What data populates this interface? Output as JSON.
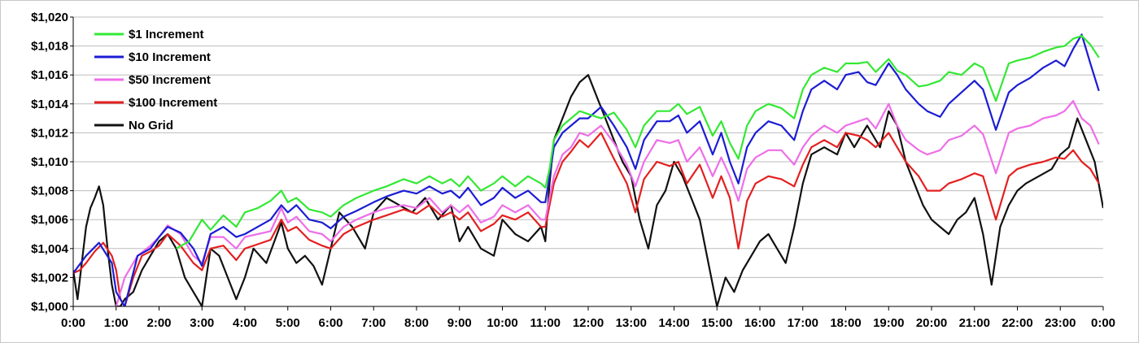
{
  "chart_data": {
    "type": "line",
    "title": "",
    "xlabel": "",
    "ylabel": "",
    "ylim": [
      1000,
      1020
    ],
    "y_ticks": [
      1000,
      1002,
      1004,
      1006,
      1008,
      1010,
      1012,
      1014,
      1016,
      1018,
      1020
    ],
    "y_tick_labels": [
      "$1,000",
      "$1,002",
      "$1,004",
      "$1,006",
      "$1,008",
      "$1,010",
      "$1,012",
      "$1,014",
      "$1,016",
      "$1,018",
      "$1,020"
    ],
    "xlim": [
      0,
      24
    ],
    "x_ticks": [
      0,
      1,
      2,
      3,
      4,
      5,
      6,
      7,
      8,
      9,
      10,
      11,
      12,
      13,
      14,
      15,
      16,
      17,
      18,
      19,
      20,
      21,
      22,
      23,
      24
    ],
    "x_tick_labels": [
      "0:00",
      "1:00",
      "2:00",
      "3:00",
      "4:00",
      "5:00",
      "6:00",
      "7:00",
      "8:00",
      "9:00",
      "10:00",
      "11:00",
      "12:00",
      "13:00",
      "14:00",
      "15:00",
      "16:00",
      "17:00",
      "18:00",
      "19:00",
      "20:00",
      "21:00",
      "22:00",
      "23:00",
      "0:00"
    ],
    "grid": "horizontal",
    "legend_position": "top-left",
    "series": [
      {
        "name": "$1 Increment",
        "color": "#33e833",
        "x": [
          2.4,
          2.7,
          2.9,
          3.0,
          3.2,
          3.5,
          3.8,
          4.0,
          4.3,
          4.6,
          4.85,
          5.0,
          5.2,
          5.5,
          5.8,
          6.0,
          6.3,
          6.6,
          7.0,
          7.3,
          7.7,
          8.0,
          8.3,
          8.6,
          8.8,
          9.0,
          9.2,
          9.5,
          9.8,
          10.0,
          10.3,
          10.6,
          10.9,
          11.0,
          11.1,
          11.2,
          11.4,
          11.6,
          11.8,
          12.0,
          12.3,
          12.6,
          12.9,
          13.1,
          13.3,
          13.6,
          13.9,
          14.1,
          14.3,
          14.6,
          14.9,
          15.1,
          15.3,
          15.5,
          15.7,
          15.9,
          16.2,
          16.5,
          16.8,
          17.0,
          17.2,
          17.5,
          17.8,
          18.0,
          18.3,
          18.5,
          18.7,
          19.0,
          19.2,
          19.4,
          19.7,
          19.9,
          20.2,
          20.4,
          20.7,
          21.0,
          21.2,
          21.5,
          21.8,
          22.0,
          22.3,
          22.6,
          22.9,
          23.1,
          23.3,
          23.5,
          23.7,
          23.9
        ],
        "values": [
          1004.0,
          1004.5,
          1005.5,
          1006.0,
          1005.3,
          1006.3,
          1005.5,
          1006.5,
          1006.8,
          1007.3,
          1008.0,
          1007.2,
          1007.5,
          1006.7,
          1006.5,
          1006.2,
          1007.0,
          1007.5,
          1008.0,
          1008.3,
          1008.8,
          1008.5,
          1009.0,
          1008.5,
          1008.8,
          1008.3,
          1009.0,
          1008.0,
          1008.5,
          1009.0,
          1008.3,
          1009.0,
          1008.5,
          1008.2,
          1009.5,
          1011.5,
          1012.5,
          1013.0,
          1013.5,
          1013.3,
          1013.0,
          1013.4,
          1012.2,
          1011.0,
          1012.5,
          1013.5,
          1013.5,
          1014.0,
          1013.3,
          1013.8,
          1011.8,
          1012.8,
          1011.3,
          1010.2,
          1012.5,
          1013.5,
          1014.0,
          1013.7,
          1013.0,
          1015.0,
          1016.0,
          1016.5,
          1016.2,
          1016.8,
          1016.8,
          1016.9,
          1016.2,
          1017.1,
          1016.3,
          1016.0,
          1015.2,
          1015.3,
          1015.6,
          1016.2,
          1016.0,
          1016.8,
          1016.5,
          1014.2,
          1016.8,
          1017.0,
          1017.2,
          1017.6,
          1017.9,
          1018.0,
          1018.5,
          1018.7,
          1018.1,
          1017.2
        ]
      },
      {
        "name": "$10 Increment",
        "color": "#1c1cd4",
        "x": [
          0.0,
          0.3,
          0.6,
          0.9,
          1.0,
          1.2,
          1.5,
          1.8,
          2.0,
          2.2,
          2.5,
          2.8,
          3.0,
          3.2,
          3.5,
          3.8,
          4.0,
          4.3,
          4.6,
          4.85,
          5.0,
          5.2,
          5.5,
          5.8,
          6.0,
          6.3,
          6.6,
          7.0,
          7.3,
          7.7,
          8.0,
          8.3,
          8.6,
          8.8,
          9.0,
          9.2,
          9.5,
          9.8,
          10.0,
          10.3,
          10.6,
          10.9,
          11.0,
          11.1,
          11.2,
          11.4,
          11.6,
          11.8,
          12.0,
          12.3,
          12.6,
          12.9,
          13.1,
          13.3,
          13.6,
          13.9,
          14.1,
          14.3,
          14.6,
          14.9,
          15.1,
          15.3,
          15.5,
          15.7,
          15.9,
          16.2,
          16.5,
          16.8,
          17.0,
          17.2,
          17.5,
          17.8,
          18.0,
          18.3,
          18.5,
          18.7,
          19.0,
          19.2,
          19.4,
          19.7,
          19.9,
          20.2,
          20.4,
          20.7,
          21.0,
          21.2,
          21.5,
          21.8,
          22.0,
          22.3,
          22.6,
          22.9,
          23.1,
          23.3,
          23.5,
          23.7,
          23.9
        ],
        "values": [
          1002.3,
          1003.5,
          1004.4,
          1003.0,
          1001.0,
          1000.0,
          1003.5,
          1004.0,
          1004.8,
          1005.5,
          1005.1,
          1004.0,
          1002.8,
          1005.0,
          1005.5,
          1004.8,
          1005.0,
          1005.5,
          1006.0,
          1007.0,
          1006.5,
          1007.0,
          1006.0,
          1005.8,
          1005.4,
          1006.2,
          1006.6,
          1007.2,
          1007.6,
          1008.0,
          1007.8,
          1008.3,
          1007.8,
          1008.0,
          1007.5,
          1008.2,
          1007.0,
          1007.5,
          1008.2,
          1007.5,
          1008.0,
          1007.2,
          1007.2,
          1009.0,
          1011.0,
          1012.0,
          1012.5,
          1013.0,
          1013.0,
          1013.8,
          1012.5,
          1011.0,
          1009.5,
          1011.5,
          1012.8,
          1012.8,
          1013.2,
          1012.0,
          1012.8,
          1010.5,
          1012.0,
          1010.0,
          1008.5,
          1011.0,
          1012.0,
          1012.8,
          1012.5,
          1011.5,
          1013.5,
          1015.0,
          1015.6,
          1015.0,
          1016.0,
          1016.2,
          1015.5,
          1015.3,
          1016.8,
          1016.0,
          1015.0,
          1014.0,
          1013.5,
          1013.1,
          1014.0,
          1014.8,
          1015.6,
          1015.0,
          1012.2,
          1014.8,
          1015.3,
          1015.8,
          1016.5,
          1017.0,
          1016.6,
          1017.8,
          1018.8,
          1016.8,
          1014.9
        ]
      },
      {
        "name": "$50 Increment",
        "color": "#ee6ee8",
        "x": [
          1.0,
          1.2,
          1.5,
          1.8,
          2.0,
          2.2,
          2.5,
          2.8,
          3.0,
          3.2,
          3.5,
          3.8,
          4.0,
          4.3,
          4.6,
          4.85,
          5.0,
          5.2,
          5.5,
          5.8,
          6.0,
          6.3,
          6.6,
          7.0,
          7.3,
          7.7,
          8.0,
          8.3,
          8.6,
          8.8,
          9.0,
          9.2,
          9.5,
          9.8,
          10.0,
          10.3,
          10.6,
          10.9,
          11.0,
          11.1,
          11.2,
          11.4,
          11.6,
          11.8,
          12.0,
          12.3,
          12.6,
          12.9,
          13.1,
          13.3,
          13.6,
          13.9,
          14.1,
          14.3,
          14.6,
          14.9,
          15.1,
          15.3,
          15.5,
          15.7,
          15.9,
          16.2,
          16.5,
          16.8,
          17.0,
          17.2,
          17.5,
          17.8,
          18.0,
          18.3,
          18.5,
          18.7,
          19.0,
          19.2,
          19.4,
          19.7,
          19.9,
          20.2,
          20.4,
          20.7,
          21.0,
          21.2,
          21.5,
          21.8,
          22.0,
          22.3,
          22.6,
          22.9,
          23.1,
          23.3,
          23.5,
          23.7,
          23.9
        ],
        "values": [
          1000.0,
          1002.0,
          1003.5,
          1004.2,
          1004.8,
          1005.6,
          1005.0,
          1003.5,
          1003.0,
          1004.8,
          1004.8,
          1004.0,
          1004.8,
          1005.0,
          1005.2,
          1006.8,
          1005.8,
          1006.2,
          1005.2,
          1005.0,
          1004.5,
          1005.5,
          1006.0,
          1006.5,
          1006.8,
          1007.0,
          1006.8,
          1007.5,
          1006.5,
          1007.0,
          1006.5,
          1007.0,
          1005.8,
          1006.2,
          1007.0,
          1006.5,
          1007.0,
          1006.0,
          1006.0,
          1007.5,
          1009.0,
          1010.5,
          1011.0,
          1012.0,
          1011.8,
          1012.5,
          1011.3,
          1009.8,
          1008.3,
          1010.0,
          1011.5,
          1011.3,
          1011.5,
          1010.0,
          1011.0,
          1009.0,
          1010.3,
          1009.0,
          1007.3,
          1009.5,
          1010.3,
          1010.8,
          1010.8,
          1009.8,
          1011.0,
          1011.8,
          1012.5,
          1012.0,
          1012.5,
          1012.8,
          1013.0,
          1012.3,
          1014.0,
          1012.5,
          1011.5,
          1010.8,
          1010.5,
          1010.8,
          1011.5,
          1011.8,
          1012.5,
          1011.9,
          1009.2,
          1012.0,
          1012.3,
          1012.5,
          1013.0,
          1013.2,
          1013.5,
          1014.2,
          1013.0,
          1012.5,
          1011.2
        ]
      },
      {
        "name": "$100 Increment",
        "color": "#e32020",
        "x": [
          0.0,
          0.15,
          0.3,
          0.5,
          0.7,
          0.9,
          1.0,
          1.1,
          1.2,
          1.4,
          1.6,
          1.8,
          2.0,
          2.2,
          2.5,
          2.8,
          3.0,
          3.2,
          3.5,
          3.8,
          4.0,
          4.3,
          4.6,
          4.85,
          5.0,
          5.2,
          5.5,
          5.8,
          6.0,
          6.3,
          6.6,
          7.0,
          7.3,
          7.7,
          8.0,
          8.3,
          8.6,
          8.8,
          9.0,
          9.2,
          9.5,
          9.8,
          10.0,
          10.3,
          10.6,
          10.9,
          11.0,
          11.1,
          11.2,
          11.4,
          11.6,
          11.8,
          12.0,
          12.3,
          12.6,
          12.9,
          13.1,
          13.3,
          13.6,
          13.9,
          14.1,
          14.3,
          14.6,
          14.9,
          15.1,
          15.3,
          15.5,
          15.7,
          15.9,
          16.2,
          16.5,
          16.8,
          17.0,
          17.2,
          17.5,
          17.8,
          18.0,
          18.3,
          18.5,
          18.7,
          19.0,
          19.2,
          19.4,
          19.7,
          19.9,
          20.2,
          20.4,
          20.7,
          21.0,
          21.2,
          21.5,
          21.8,
          22.0,
          22.3,
          22.6,
          22.9,
          23.1,
          23.3,
          23.5,
          23.7,
          23.9
        ],
        "values": [
          1002.3,
          1002.5,
          1003.0,
          1003.8,
          1004.4,
          1003.5,
          1002.5,
          1000.5,
          1000.0,
          1002.0,
          1003.5,
          1003.8,
          1004.2,
          1005.0,
          1004.2,
          1003.0,
          1002.5,
          1004.0,
          1004.2,
          1003.2,
          1004.0,
          1004.3,
          1004.6,
          1006.0,
          1005.2,
          1005.5,
          1004.6,
          1004.2,
          1004.0,
          1005.0,
          1005.5,
          1006.0,
          1006.3,
          1006.7,
          1006.4,
          1007.0,
          1006.2,
          1006.5,
          1006.0,
          1006.5,
          1005.2,
          1005.7,
          1006.3,
          1006.0,
          1006.5,
          1005.5,
          1005.5,
          1007.0,
          1008.5,
          1010.0,
          1010.7,
          1011.5,
          1011.0,
          1012.0,
          1010.2,
          1008.5,
          1006.5,
          1008.8,
          1010.0,
          1009.7,
          1010.0,
          1008.5,
          1009.8,
          1007.5,
          1009.0,
          1007.5,
          1004.0,
          1007.3,
          1008.5,
          1009.0,
          1008.8,
          1008.3,
          1009.8,
          1011.0,
          1011.5,
          1011.0,
          1012.0,
          1011.8,
          1011.5,
          1011.0,
          1012.0,
          1011.0,
          1010.0,
          1009.0,
          1008.0,
          1008.0,
          1008.5,
          1008.8,
          1009.2,
          1009.0,
          1006.0,
          1009.0,
          1009.5,
          1009.8,
          1010.0,
          1010.3,
          1010.2,
          1010.8,
          1010.0,
          1009.5,
          1008.5
        ]
      },
      {
        "name": "No Grid",
        "color": "#111111",
        "x": [
          0.0,
          0.1,
          0.2,
          0.3,
          0.4,
          0.5,
          0.6,
          0.7,
          0.8,
          0.9,
          1.0,
          1.1,
          1.2,
          1.4,
          1.6,
          1.8,
          2.0,
          2.2,
          2.4,
          2.6,
          2.8,
          3.0,
          3.2,
          3.4,
          3.6,
          3.8,
          4.0,
          4.2,
          4.5,
          4.85,
          5.0,
          5.2,
          5.4,
          5.6,
          5.8,
          6.0,
          6.2,
          6.5,
          6.8,
          7.0,
          7.3,
          7.6,
          7.9,
          8.2,
          8.5,
          8.8,
          9.0,
          9.2,
          9.5,
          9.8,
          10.0,
          10.3,
          10.6,
          10.9,
          11.0,
          11.1,
          11.2,
          11.4,
          11.6,
          11.8,
          12.0,
          12.2,
          12.4,
          12.6,
          12.8,
          13.0,
          13.2,
          13.4,
          13.6,
          13.8,
          14.0,
          14.2,
          14.4,
          14.6,
          14.8,
          15.0,
          15.2,
          15.4,
          15.6,
          15.8,
          16.0,
          16.2,
          16.4,
          16.6,
          16.8,
          17.0,
          17.2,
          17.5,
          17.8,
          18.0,
          18.2,
          18.5,
          18.8,
          19.0,
          19.2,
          19.4,
          19.6,
          19.8,
          20.0,
          20.2,
          20.4,
          20.6,
          20.8,
          21.0,
          21.2,
          21.4,
          21.6,
          21.8,
          22.0,
          22.2,
          22.5,
          22.8,
          23.0,
          23.2,
          23.4,
          23.6,
          23.8,
          24.0
        ],
        "values": [
          1002.5,
          1000.5,
          1003.0,
          1005.5,
          1006.8,
          1007.5,
          1008.3,
          1007.0,
          1004.0,
          1001.5,
          1000.0,
          1000.0,
          1000.5,
          1001.0,
          1002.5,
          1003.5,
          1004.5,
          1005.0,
          1004.0,
          1002.0,
          1001.0,
          1000.0,
          1004.0,
          1003.5,
          1002.0,
          1000.5,
          1002.0,
          1004.0,
          1003.0,
          1005.8,
          1004.0,
          1003.0,
          1003.5,
          1002.8,
          1001.5,
          1004.0,
          1006.5,
          1005.5,
          1004.0,
          1006.5,
          1007.5,
          1007.0,
          1006.5,
          1007.5,
          1006.0,
          1007.0,
          1004.5,
          1005.5,
          1004.0,
          1003.5,
          1006.0,
          1005.0,
          1004.5,
          1005.5,
          1004.5,
          1008.5,
          1011.5,
          1013.0,
          1014.5,
          1015.5,
          1016.0,
          1014.5,
          1013.0,
          1011.5,
          1010.0,
          1009.0,
          1006.0,
          1004.0,
          1007.0,
          1008.0,
          1010.0,
          1009.0,
          1007.5,
          1006.0,
          1003.0,
          1000.0,
          1002.0,
          1001.0,
          1002.5,
          1003.5,
          1004.5,
          1005.0,
          1004.0,
          1003.0,
          1005.5,
          1008.5,
          1010.5,
          1011.0,
          1010.5,
          1012.0,
          1011.0,
          1012.5,
          1011.0,
          1013.5,
          1012.5,
          1010.0,
          1008.5,
          1007.0,
          1006.0,
          1005.5,
          1005.0,
          1006.0,
          1006.5,
          1007.5,
          1005.0,
          1001.5,
          1005.5,
          1007.0,
          1008.0,
          1008.5,
          1009.0,
          1009.5,
          1010.5,
          1011.0,
          1013.0,
          1011.5,
          1010.0,
          1006.8
        ]
      }
    ]
  }
}
